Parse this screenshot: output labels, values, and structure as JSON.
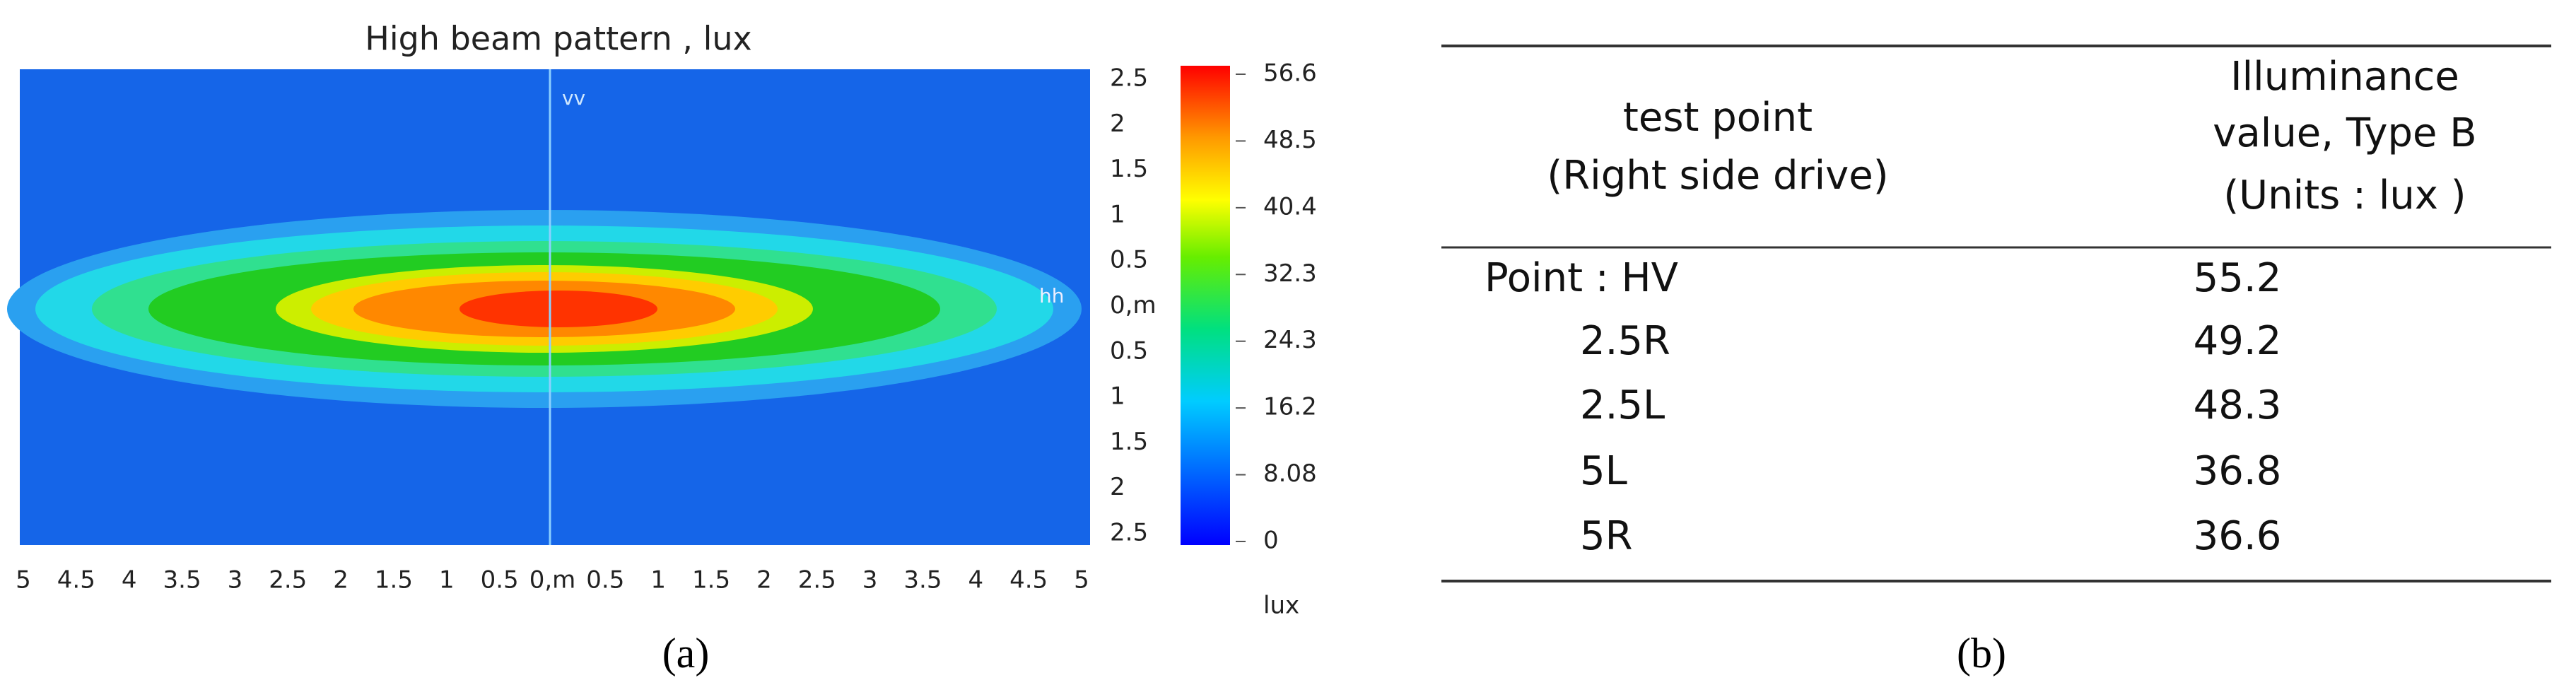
{
  "figure_a": {
    "title": "High beam pattern , lux",
    "vertical_label": "vv",
    "horizontal_label": "hh",
    "x_tick_labels": [
      "5",
      "4.5",
      "4",
      "3.5",
      "3",
      "2.5",
      "2",
      "1.5",
      "1",
      "0.5",
      "0,m",
      "0.5",
      "1",
      "1.5",
      "2",
      "2.5",
      "3",
      "3.5",
      "4",
      "4.5",
      "5"
    ],
    "y_tick_labels": [
      "2.5",
      "2",
      "1.5",
      "1",
      "0.5",
      "0,m",
      "0.5",
      "1",
      "1.5",
      "2",
      "2.5"
    ],
    "colorbar_ticks": [
      56.6,
      48.5,
      40.4,
      32.3,
      24.3,
      16.2,
      8.08,
      0
    ],
    "colorbar_unit": "lux",
    "caption": "(a)"
  },
  "figure_b": {
    "table": {
      "header": [
        [
          "test point",
          "(Right side drive)"
        ],
        [
          "Illuminance",
          "value, Type B",
          "(Units : lux )"
        ]
      ],
      "rows": [
        [
          "Point : HV",
          55.2
        ],
        [
          "2.5R",
          49.2
        ],
        [
          "2.5L",
          48.3
        ],
        [
          "5L",
          36.8
        ],
        [
          "5R",
          36.6
        ]
      ]
    },
    "caption": "(b)"
  }
}
